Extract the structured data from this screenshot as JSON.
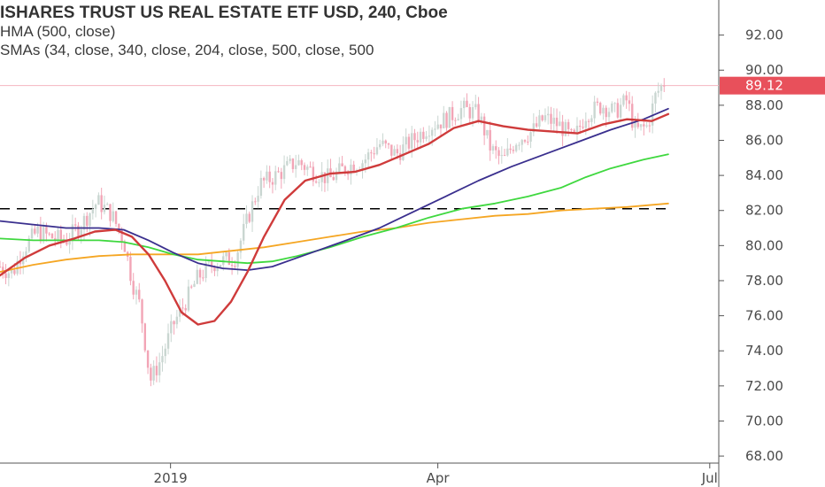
{
  "legend": {
    "title": "ISHARES TRUST US REAL ESTATE ETF USD, 240, Cboe",
    "line2": "HMA (500, close)",
    "line3": "SMAs (34, close, 340, close, 204, close, 500, close, 500"
  },
  "colors": {
    "background": "#ffffff",
    "up_candle": "#c9d6d1",
    "down_candle": "#f2a5b6",
    "sma34": "#cf3b3b",
    "hma": "#3a2f8e",
    "sma204": "#3fd83f",
    "sma500": "#f5a623",
    "price_label": "#e8505b",
    "support_line": "#000000"
  },
  "chart_data": {
    "type": "line",
    "title": "ISHARES TRUST US REAL ESTATE ETF USD, 240, Cboe",
    "ylim": [
      67.6,
      94
    ],
    "y_ticks": [
      "92.00",
      "90.00",
      "88.00",
      "86.00",
      "84.00",
      "82.00",
      "80.00",
      "78.00",
      "76.00",
      "74.00",
      "72.00",
      "70.00",
      "68.00"
    ],
    "y_tick_values": [
      92,
      90,
      88,
      86,
      84,
      82,
      80,
      78,
      76,
      74,
      72,
      70,
      68
    ],
    "x_ticks": [
      {
        "label": "2019",
        "t": 0.2067
      },
      {
        "label": "Apr",
        "t": 0.5307
      },
      {
        "label": "Jul",
        "t": 0.8603
      }
    ],
    "current_price": {
      "value": 89.12,
      "label": "89.12"
    },
    "support_level": 82.1,
    "price_path": [
      {
        "t": 0.0,
        "v": 78.8
      },
      {
        "t": 0.015,
        "v": 78.4
      },
      {
        "t": 0.028,
        "v": 79.8
      },
      {
        "t": 0.045,
        "v": 80.8
      },
      {
        "t": 0.06,
        "v": 80.5
      },
      {
        "t": 0.08,
        "v": 80.3
      },
      {
        "t": 0.1,
        "v": 81.3
      },
      {
        "t": 0.118,
        "v": 82.5
      },
      {
        "t": 0.135,
        "v": 81.8
      },
      {
        "t": 0.15,
        "v": 80.3
      },
      {
        "t": 0.16,
        "v": 78.0
      },
      {
        "t": 0.17,
        "v": 76.5
      },
      {
        "t": 0.182,
        "v": 72.3
      },
      {
        "t": 0.195,
        "v": 73.5
      },
      {
        "t": 0.21,
        "v": 75.5
      },
      {
        "t": 0.225,
        "v": 76.8
      },
      {
        "t": 0.24,
        "v": 78.2
      },
      {
        "t": 0.26,
        "v": 79.0
      },
      {
        "t": 0.285,
        "v": 79.3
      },
      {
        "t": 0.3,
        "v": 81.5
      },
      {
        "t": 0.315,
        "v": 83.5
      },
      {
        "t": 0.335,
        "v": 84.0
      },
      {
        "t": 0.36,
        "v": 84.8
      },
      {
        "t": 0.38,
        "v": 84.2
      },
      {
        "t": 0.4,
        "v": 83.8
      },
      {
        "t": 0.42,
        "v": 84.5
      },
      {
        "t": 0.44,
        "v": 84.8
      },
      {
        "t": 0.46,
        "v": 85.8
      },
      {
        "t": 0.48,
        "v": 85.2
      },
      {
        "t": 0.5,
        "v": 86.0
      },
      {
        "t": 0.52,
        "v": 86.8
      },
      {
        "t": 0.54,
        "v": 87.2
      },
      {
        "t": 0.56,
        "v": 87.8
      },
      {
        "t": 0.58,
        "v": 87.5
      },
      {
        "t": 0.595,
        "v": 85.5
      },
      {
        "t": 0.61,
        "v": 84.8
      },
      {
        "t": 0.625,
        "v": 86.0
      },
      {
        "t": 0.645,
        "v": 86.5
      },
      {
        "t": 0.66,
        "v": 87.3
      },
      {
        "t": 0.68,
        "v": 86.8
      },
      {
        "t": 0.695,
        "v": 86.0
      },
      {
        "t": 0.71,
        "v": 87.5
      },
      {
        "t": 0.73,
        "v": 88.0
      },
      {
        "t": 0.745,
        "v": 87.6
      },
      {
        "t": 0.76,
        "v": 88.3
      },
      {
        "t": 0.77,
        "v": 86.5
      },
      {
        "t": 0.785,
        "v": 86.8
      },
      {
        "t": 0.795,
        "v": 88.6
      },
      {
        "t": 0.805,
        "v": 89.3
      }
    ],
    "series": [
      {
        "name": "SMA 34",
        "color": "#cf3b3b",
        "points": [
          {
            "t": 0.0,
            "v": 78.3
          },
          {
            "t": 0.03,
            "v": 79.3
          },
          {
            "t": 0.06,
            "v": 80.0
          },
          {
            "t": 0.09,
            "v": 80.4
          },
          {
            "t": 0.115,
            "v": 80.8
          },
          {
            "t": 0.14,
            "v": 80.9
          },
          {
            "t": 0.16,
            "v": 80.5
          },
          {
            "t": 0.18,
            "v": 79.5
          },
          {
            "t": 0.2,
            "v": 78.0
          },
          {
            "t": 0.22,
            "v": 76.2
          },
          {
            "t": 0.24,
            "v": 75.5
          },
          {
            "t": 0.26,
            "v": 75.7
          },
          {
            "t": 0.28,
            "v": 76.8
          },
          {
            "t": 0.3,
            "v": 78.5
          },
          {
            "t": 0.32,
            "v": 80.5
          },
          {
            "t": 0.345,
            "v": 82.6
          },
          {
            "t": 0.37,
            "v": 83.7
          },
          {
            "t": 0.4,
            "v": 84.1
          },
          {
            "t": 0.43,
            "v": 84.2
          },
          {
            "t": 0.46,
            "v": 84.6
          },
          {
            "t": 0.49,
            "v": 85.2
          },
          {
            "t": 0.52,
            "v": 85.8
          },
          {
            "t": 0.55,
            "v": 86.7
          },
          {
            "t": 0.58,
            "v": 87.1
          },
          {
            "t": 0.61,
            "v": 86.8
          },
          {
            "t": 0.64,
            "v": 86.6
          },
          {
            "t": 0.67,
            "v": 86.5
          },
          {
            "t": 0.7,
            "v": 86.4
          },
          {
            "t": 0.73,
            "v": 86.9
          },
          {
            "t": 0.76,
            "v": 87.2
          },
          {
            "t": 0.79,
            "v": 87.1
          },
          {
            "t": 0.81,
            "v": 87.5
          }
        ]
      },
      {
        "name": "HMA 500",
        "color": "#3a2f8e",
        "points": [
          {
            "t": 0.0,
            "v": 81.4
          },
          {
            "t": 0.04,
            "v": 81.2
          },
          {
            "t": 0.08,
            "v": 81.0
          },
          {
            "t": 0.12,
            "v": 81.0
          },
          {
            "t": 0.15,
            "v": 80.9
          },
          {
            "t": 0.18,
            "v": 80.3
          },
          {
            "t": 0.21,
            "v": 79.6
          },
          {
            "t": 0.24,
            "v": 79.0
          },
          {
            "t": 0.27,
            "v": 78.7
          },
          {
            "t": 0.3,
            "v": 78.6
          },
          {
            "t": 0.33,
            "v": 78.8
          },
          {
            "t": 0.36,
            "v": 79.3
          },
          {
            "t": 0.39,
            "v": 79.8
          },
          {
            "t": 0.42,
            "v": 80.3
          },
          {
            "t": 0.46,
            "v": 81.0
          },
          {
            "t": 0.5,
            "v": 81.9
          },
          {
            "t": 0.54,
            "v": 82.8
          },
          {
            "t": 0.58,
            "v": 83.7
          },
          {
            "t": 0.62,
            "v": 84.5
          },
          {
            "t": 0.66,
            "v": 85.2
          },
          {
            "t": 0.7,
            "v": 85.9
          },
          {
            "t": 0.74,
            "v": 86.6
          },
          {
            "t": 0.78,
            "v": 87.2
          },
          {
            "t": 0.81,
            "v": 87.8
          }
        ]
      },
      {
        "name": "SMA 204",
        "color": "#3fd83f",
        "points": [
          {
            "t": 0.0,
            "v": 80.4
          },
          {
            "t": 0.04,
            "v": 80.3
          },
          {
            "t": 0.08,
            "v": 80.3
          },
          {
            "t": 0.12,
            "v": 80.3
          },
          {
            "t": 0.15,
            "v": 80.2
          },
          {
            "t": 0.18,
            "v": 79.9
          },
          {
            "t": 0.21,
            "v": 79.5
          },
          {
            "t": 0.24,
            "v": 79.2
          },
          {
            "t": 0.27,
            "v": 79.1
          },
          {
            "t": 0.3,
            "v": 79.0
          },
          {
            "t": 0.33,
            "v": 79.1
          },
          {
            "t": 0.36,
            "v": 79.4
          },
          {
            "t": 0.4,
            "v": 79.9
          },
          {
            "t": 0.44,
            "v": 80.5
          },
          {
            "t": 0.48,
            "v": 81.0
          },
          {
            "t": 0.52,
            "v": 81.6
          },
          {
            "t": 0.56,
            "v": 82.1
          },
          {
            "t": 0.6,
            "v": 82.4
          },
          {
            "t": 0.64,
            "v": 82.8
          },
          {
            "t": 0.68,
            "v": 83.3
          },
          {
            "t": 0.71,
            "v": 83.9
          },
          {
            "t": 0.74,
            "v": 84.4
          },
          {
            "t": 0.78,
            "v": 84.9
          },
          {
            "t": 0.81,
            "v": 85.2
          }
        ]
      },
      {
        "name": "SMA 500",
        "color": "#f5a623",
        "points": [
          {
            "t": 0.0,
            "v": 78.5
          },
          {
            "t": 0.04,
            "v": 78.9
          },
          {
            "t": 0.08,
            "v": 79.2
          },
          {
            "t": 0.12,
            "v": 79.4
          },
          {
            "t": 0.16,
            "v": 79.5
          },
          {
            "t": 0.2,
            "v": 79.5
          },
          {
            "t": 0.24,
            "v": 79.5
          },
          {
            "t": 0.28,
            "v": 79.7
          },
          {
            "t": 0.32,
            "v": 79.9
          },
          {
            "t": 0.36,
            "v": 80.2
          },
          {
            "t": 0.4,
            "v": 80.5
          },
          {
            "t": 0.44,
            "v": 80.8
          },
          {
            "t": 0.48,
            "v": 81.0
          },
          {
            "t": 0.52,
            "v": 81.3
          },
          {
            "t": 0.56,
            "v": 81.5
          },
          {
            "t": 0.6,
            "v": 81.7
          },
          {
            "t": 0.64,
            "v": 81.8
          },
          {
            "t": 0.68,
            "v": 82.0
          },
          {
            "t": 0.72,
            "v": 82.1
          },
          {
            "t": 0.76,
            "v": 82.2
          },
          {
            "t": 0.81,
            "v": 82.4
          }
        ]
      }
    ]
  }
}
